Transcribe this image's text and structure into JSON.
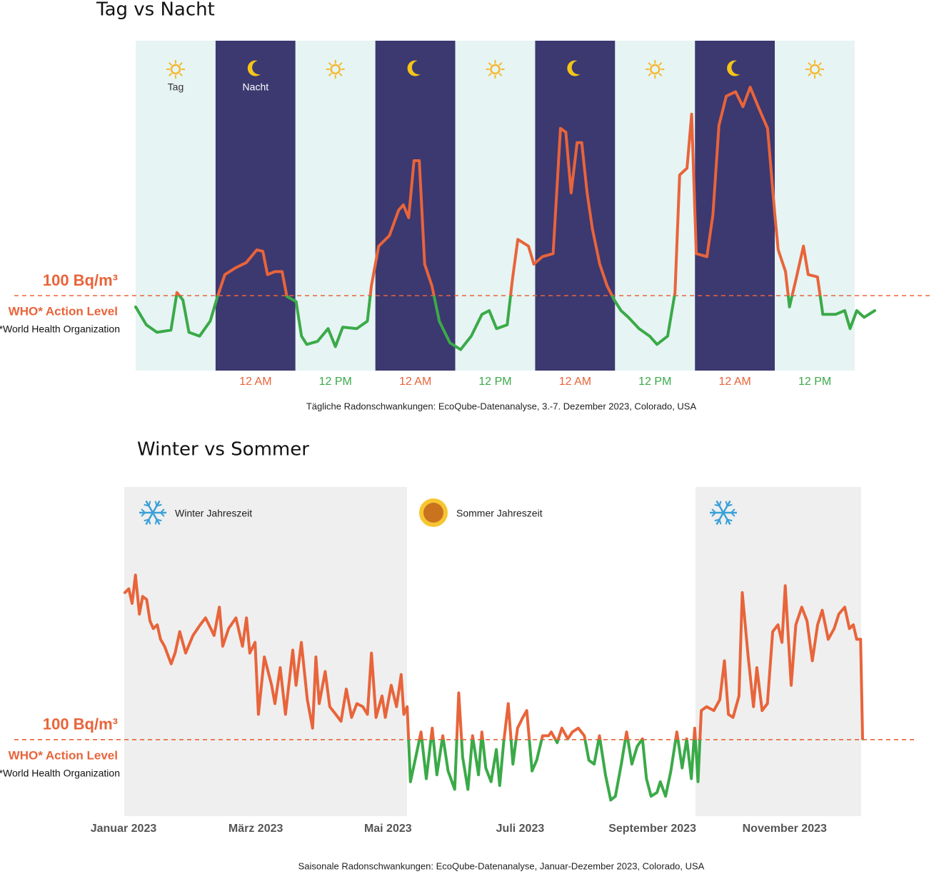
{
  "chart_data": [
    {
      "type": "line",
      "title": "Tag vs Nacht",
      "caption": "Tägliche Radonschwankungen: EcoQube-Datenanalyse, 3.-7. Dezember 2023, Colorado, USA",
      "band_labels": [
        "Tag",
        "Nacht"
      ],
      "threshold": {
        "value": 100,
        "label": "100 Bq/m³"
      },
      "annotations": [
        "WHO* Action Level",
        "*World Health Organization"
      ],
      "above_color": "#e8643a",
      "below_color": "#3aaa48",
      "xlim": [
        -18,
        93
      ],
      "ylim": [
        0,
        440
      ],
      "xticks": [
        {
          "value": 0,
          "label": "12 AM"
        },
        {
          "value": 12,
          "label": "12 PM"
        },
        {
          "value": 24,
          "label": "12 AM"
        },
        {
          "value": 36,
          "label": "12 PM"
        },
        {
          "value": 48,
          "label": "12 AM"
        },
        {
          "value": 60,
          "label": "12 PM"
        },
        {
          "value": 72,
          "label": "12 AM"
        },
        {
          "value": 84,
          "label": "12 PM"
        }
      ],
      "x": [
        -18.0,
        -16.4,
        -14.8,
        -12.7,
        -11.8,
        -10.9,
        -10.0,
        -8.4,
        -6.8,
        -5.7,
        -4.6,
        -3.0,
        -1.4,
        0.2,
        1.1,
        1.8,
        2.9,
        4.0,
        4.7,
        6.1,
        6.9,
        7.7,
        9.3,
        10.9,
        12.0,
        13.1,
        15.2,
        16.8,
        17.4,
        18.5,
        20.1,
        21.5,
        22.2,
        23.0,
        23.8,
        24.6,
        25.4,
        26.5,
        27.6,
        29.2,
        30.8,
        32.4,
        34.0,
        35.1,
        36.2,
        37.8,
        38.6,
        39.4,
        41.0,
        41.8,
        43.1,
        44.7,
        45.8,
        46.6,
        47.4,
        48.3,
        49.0,
        49.8,
        50.6,
        51.7,
        52.8,
        53.9,
        54.9,
        56.0,
        57.6,
        59.2,
        60.3,
        61.9,
        63.0,
        63.7,
        64.8,
        65.5,
        66.2,
        67.8,
        68.7,
        69.6,
        70.7,
        72.1,
        73.2,
        74.3,
        75.5,
        76.9,
        78.0,
        78.5,
        79.6,
        80.2,
        81.2,
        82.3,
        83.0,
        84.4,
        85.2,
        87.1,
        88.5,
        89.3,
        90.3,
        91.4,
        93.0
      ],
      "values": [
        85,
        61,
        51,
        54,
        104,
        94,
        51,
        46,
        66,
        99,
        128,
        137,
        144,
        161,
        159,
        128,
        132,
        132,
        99,
        92,
        46,
        35,
        39,
        56,
        32,
        58,
        56,
        66,
        113,
        166,
        180,
        214,
        221,
        204,
        280,
        280,
        142,
        113,
        66,
        37,
        28,
        46,
        75,
        80,
        56,
        61,
        123,
        175,
        166,
        142,
        152,
        156,
        323,
        318,
        237,
        304,
        304,
        237,
        189,
        142,
        113,
        94,
        80,
        71,
        56,
        46,
        35,
        46,
        104,
        261,
        270,
        342,
        156,
        152,
        208,
        327,
        366,
        372,
        352,
        378,
        352,
        323,
        208,
        161,
        132,
        85,
        123,
        166,
        128,
        125,
        75,
        75,
        80,
        56,
        80,
        71,
        80
      ]
    },
    {
      "type": "line",
      "title": "Winter vs Sommer",
      "caption": "Saisonale Radonschwankungen: EcoQube-Datenanalyse, Januar-Dezember 2023, Colorado, USA",
      "season_labels": [
        "Winter Jahreszeit",
        "Sommer Jahreszeit"
      ],
      "threshold": {
        "value": 100,
        "label": "100 Bq/m³"
      },
      "annotations": [
        "WHO* Action Level",
        "*World Health Organization"
      ],
      "above_color": "#e8643a",
      "below_color": "#3aaa48",
      "xlim": [
        0,
        11.18
      ],
      "ylim": [
        0,
        430
      ],
      "xticks": [
        {
          "value": 0,
          "label": "Januar 2023"
        },
        {
          "value": 2,
          "label": "März 2023"
        },
        {
          "value": 4,
          "label": "Mai 2023"
        },
        {
          "value": 6,
          "label": "Juli 2023"
        },
        {
          "value": 8,
          "label": "September 2023"
        },
        {
          "value": 10,
          "label": "November 2023"
        }
      ],
      "x": [
        0.02,
        0.08,
        0.13,
        0.18,
        0.24,
        0.29,
        0.35,
        0.4,
        0.45,
        0.51,
        0.56,
        0.62,
        0.72,
        0.78,
        0.85,
        0.94,
        1.05,
        1.16,
        1.24,
        1.32,
        1.37,
        1.45,
        1.5,
        1.59,
        1.7,
        1.8,
        1.86,
        1.91,
        1.99,
        2.04,
        2.13,
        2.24,
        2.29,
        2.37,
        2.45,
        2.56,
        2.61,
        2.69,
        2.78,
        2.86,
        2.91,
        2.96,
        3.05,
        3.12,
        3.21,
        3.29,
        3.37,
        3.45,
        3.53,
        3.62,
        3.69,
        3.75,
        3.82,
        3.91,
        3.96,
        4.05,
        4.13,
        4.2,
        4.24,
        4.29,
        4.34,
        4.42,
        4.5,
        4.58,
        4.67,
        4.74,
        4.83,
        4.91,
        5.01,
        5.07,
        5.13,
        5.21,
        5.28,
        5.37,
        5.42,
        5.48,
        5.56,
        5.64,
        5.69,
        5.75,
        5.82,
        5.89,
        5.96,
        6.04,
        6.1,
        6.18,
        6.25,
        6.34,
        6.43,
        6.47,
        6.56,
        6.63,
        6.72,
        6.79,
        6.88,
        6.97,
        7.04,
        7.12,
        7.2,
        7.29,
        7.37,
        7.44,
        7.53,
        7.61,
        7.69,
        7.77,
        7.85,
        7.91,
        7.98,
        8.07,
        8.12,
        8.2,
        8.28,
        8.37,
        8.45,
        8.52,
        8.59,
        8.64,
        8.69,
        8.74,
        8.82,
        8.93,
        9.02,
        9.09,
        9.15,
        9.22,
        9.31,
        9.36,
        9.45,
        9.53,
        9.58,
        9.66,
        9.74,
        9.82,
        9.9,
        9.96,
        10.01,
        10.1,
        10.17,
        10.26,
        10.34,
        10.42,
        10.5,
        10.57,
        10.66,
        10.75,
        10.82,
        10.91,
        10.98,
        11.04,
        11.09,
        11.15,
        11.18
      ],
      "values": [
        292,
        297,
        278,
        315,
        264,
        287,
        283,
        255,
        245,
        250,
        231,
        222,
        199,
        213,
        241,
        213,
        236,
        250,
        259,
        245,
        236,
        273,
        222,
        245,
        259,
        222,
        259,
        213,
        227,
        133,
        208,
        171,
        147,
        194,
        133,
        217,
        171,
        227,
        152,
        115,
        208,
        147,
        189,
        143,
        133,
        124,
        166,
        129,
        147,
        143,
        133,
        213,
        129,
        157,
        129,
        171,
        143,
        185,
        133,
        143,
        45,
        77,
        110,
        49,
        115,
        54,
        105,
        59,
        35,
        161,
        77,
        35,
        105,
        54,
        110,
        63,
        45,
        87,
        40,
        96,
        147,
        68,
        115,
        129,
        138,
        59,
        73,
        105,
        105,
        110,
        96,
        115,
        101,
        110,
        115,
        105,
        73,
        68,
        105,
        54,
        21,
        26,
        68,
        110,
        68,
        91,
        101,
        49,
        26,
        31,
        45,
        26,
        59,
        110,
        63,
        101,
        49,
        115,
        45,
        138,
        143,
        138,
        152,
        203,
        133,
        129,
        157,
        292,
        208,
        143,
        194,
        138,
        147,
        241,
        250,
        227,
        301,
        171,
        250,
        273,
        255,
        203,
        250,
        269,
        231,
        245,
        264,
        273,
        245,
        250,
        231,
        231,
        101
      ]
    }
  ]
}
